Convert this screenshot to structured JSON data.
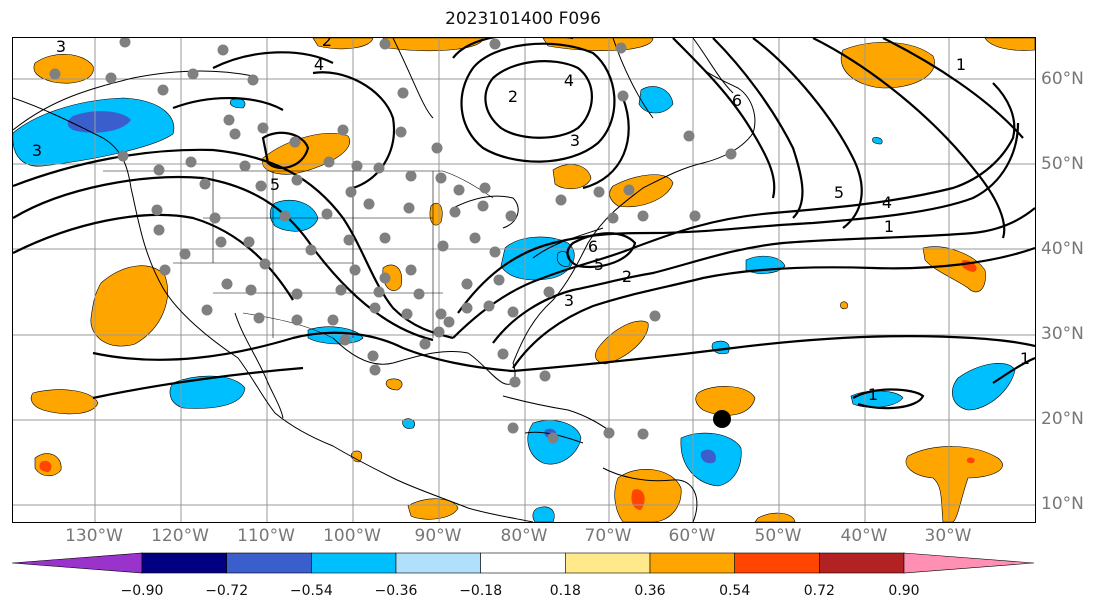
{
  "title": "2023101400 F096",
  "map": {
    "lon_labels": [
      "130°W",
      "120°W",
      "110°W",
      "100°W",
      "90°W",
      "80°W",
      "70°W",
      "60°W",
      "50°W",
      "40°W",
      "30°W"
    ],
    "lat_labels": [
      "60°N",
      "50°N",
      "40°N",
      "30°N",
      "20°N",
      "10°N"
    ],
    "contour_labels": [
      "3",
      "4",
      "2",
      "3",
      "4",
      "3",
      "6",
      "5",
      "4",
      "1",
      "5",
      "6",
      "5",
      "2",
      "3",
      "2",
      "1",
      "1",
      "1",
      "4"
    ],
    "colors": {
      "land_outline": "#000000",
      "grid": "#999999",
      "station_dots": "#808080",
      "marker": "#000000"
    },
    "marked_point": {
      "lon": "57°W",
      "lat": "20°N"
    }
  },
  "colorbar": {
    "ticks": [
      "−0.90",
      "−0.72",
      "−0.54",
      "−0.36",
      "−0.18",
      "0.18",
      "0.36",
      "0.54",
      "0.72",
      "0.90"
    ],
    "colors": [
      "#9933cc",
      "#000080",
      "#3a5fcd",
      "#00bfff",
      "#b0e0fa",
      "#ffffff",
      "#ffe98a",
      "#ffa500",
      "#ff4500",
      "#b22222",
      "#ff8fb3"
    ]
  }
}
